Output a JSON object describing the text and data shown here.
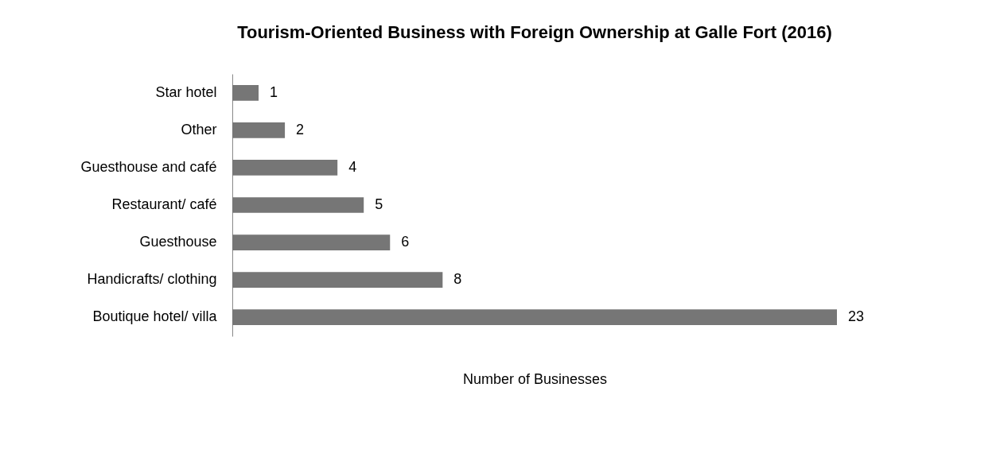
{
  "chart_data": {
    "type": "bar",
    "orientation": "horizontal",
    "title": "Tourism-Oriented Business with Foreign Ownership at Galle Fort (2016)",
    "xlabel": "Number of Businesses",
    "categories": [
      "Star hotel",
      "Other",
      "Guesthouse and café",
      "Restaurant/ café",
      "Guesthouse",
      "Handicrafts/ clothing",
      "Boutique hotel/ villa"
    ],
    "values": [
      1,
      2,
      4,
      5,
      6,
      8,
      23
    ],
    "color": "#767676",
    "xlim": [
      0,
      23
    ],
    "data_labels": true,
    "tick_labels": "y",
    "grid": false
  }
}
